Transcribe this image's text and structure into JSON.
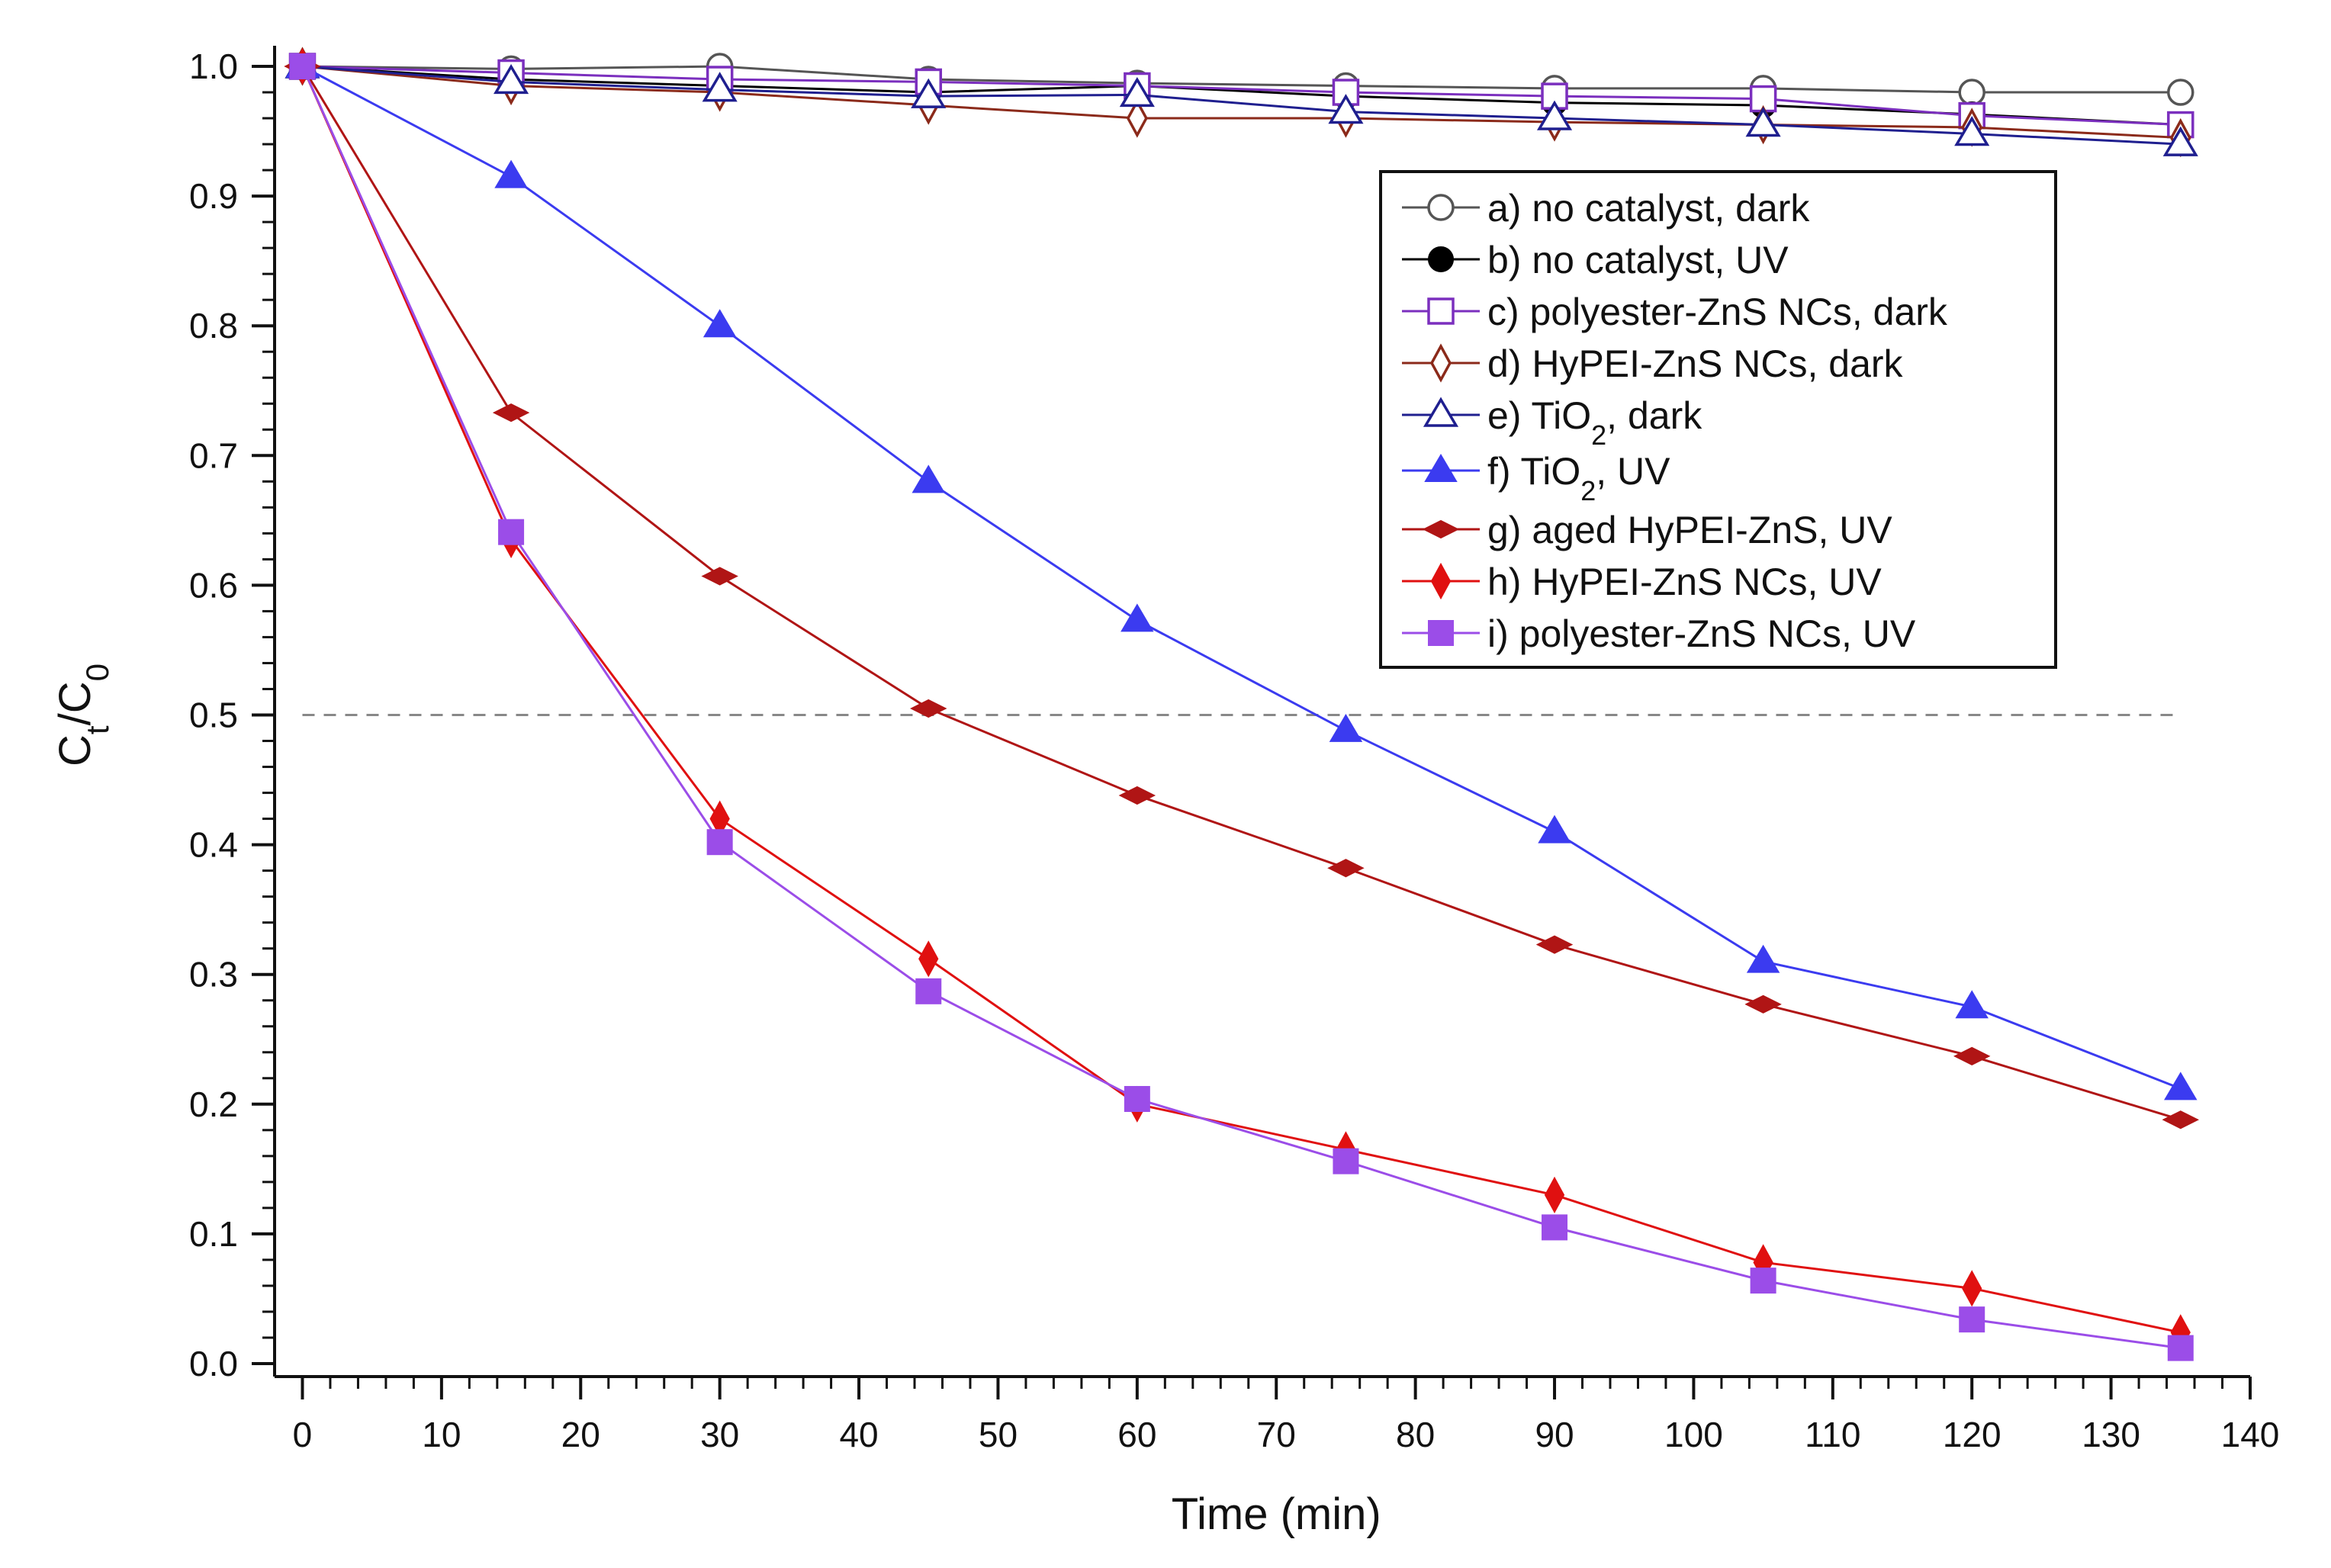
{
  "chart_data": {
    "type": "line",
    "title": "",
    "xlabel": "Time (min)",
    "ylabel": {
      "main": "C",
      "sub1": "t",
      "sep": "/C",
      "sub2": "0"
    },
    "xlim": [
      -2,
      140
    ],
    "ylim": [
      -0.01,
      1.01
    ],
    "x_ticks": [
      0,
      10,
      20,
      30,
      40,
      50,
      60,
      70,
      80,
      90,
      100,
      110,
      120,
      130,
      140
    ],
    "y_ticks": [
      0.0,
      0.1,
      0.2,
      0.3,
      0.4,
      0.5,
      0.6,
      0.7,
      0.8,
      0.9,
      1.0
    ],
    "x_minor_step": 2,
    "y_minor_step": 0.02,
    "x": [
      0,
      15,
      30,
      45,
      60,
      75,
      90,
      105,
      120,
      135
    ],
    "reference_line": {
      "y": 0.5,
      "style": "dashed",
      "color": "#888888"
    },
    "legend_position": "top-right",
    "series": [
      {
        "name": "a) no catalyst, dark",
        "color": "#555555",
        "marker": "circle",
        "filled": false,
        "values": [
          1.0,
          0.998,
          1.0,
          0.99,
          0.987,
          0.985,
          0.983,
          0.983,
          0.98,
          0.98
        ]
      },
      {
        "name": "b) no catalyst, UV",
        "color": "#000000",
        "marker": "circle",
        "filled": true,
        "values": [
          1.0,
          0.99,
          0.985,
          0.98,
          0.985,
          0.977,
          0.972,
          0.97,
          0.963,
          0.955
        ]
      },
      {
        "name": "c) polyester-ZnS NCs, dark",
        "color": "#7b2fbe",
        "marker": "square",
        "filled": false,
        "values": [
          1.0,
          0.995,
          0.99,
          0.988,
          0.985,
          0.98,
          0.977,
          0.975,
          0.962,
          0.955
        ]
      },
      {
        "name": "d) HyPEI-ZnS NCs, dark",
        "color": "#8b2a1a",
        "marker": "diamond",
        "filled": false,
        "values": [
          1.0,
          0.985,
          0.98,
          0.97,
          0.96,
          0.96,
          0.957,
          0.955,
          0.953,
          0.945
        ]
      },
      {
        "name": "e) TiO",
        "sub": "2",
        "suffix": ", dark",
        "color": "#1f1f8f",
        "marker": "triangle",
        "filled": false,
        "values": [
          1.0,
          0.988,
          0.982,
          0.977,
          0.978,
          0.965,
          0.96,
          0.955,
          0.948,
          0.94
        ]
      },
      {
        "name": "f) TiO",
        "sub": "2",
        "suffix": ", UV",
        "color": "#3b3bf0",
        "marker": "triangle",
        "filled": true,
        "values": [
          1.0,
          0.915,
          0.8,
          0.68,
          0.573,
          0.488,
          0.41,
          0.31,
          0.275,
          0.212
        ]
      },
      {
        "name": "g) aged HyPEI-ZnS, UV",
        "color": "#b01515",
        "marker": "flatdiamond",
        "filled": true,
        "values": [
          1.0,
          0.733,
          0.607,
          0.505,
          0.438,
          0.382,
          0.323,
          0.277,
          0.237,
          0.188
        ]
      },
      {
        "name": "h) HyPEI-ZnS NCs, UV",
        "color": "#e01010",
        "marker": "diamond",
        "filled": true,
        "values": [
          1.0,
          0.635,
          0.42,
          0.312,
          0.2,
          0.165,
          0.13,
          0.078,
          0.058,
          0.024
        ]
      },
      {
        "name": "i) polyester-ZnS NCs, UV",
        "color": "#9b4de8",
        "marker": "square",
        "filled": true,
        "values": [
          1.0,
          0.641,
          0.402,
          0.287,
          0.204,
          0.156,
          0.105,
          0.064,
          0.034,
          0.012
        ]
      }
    ]
  }
}
